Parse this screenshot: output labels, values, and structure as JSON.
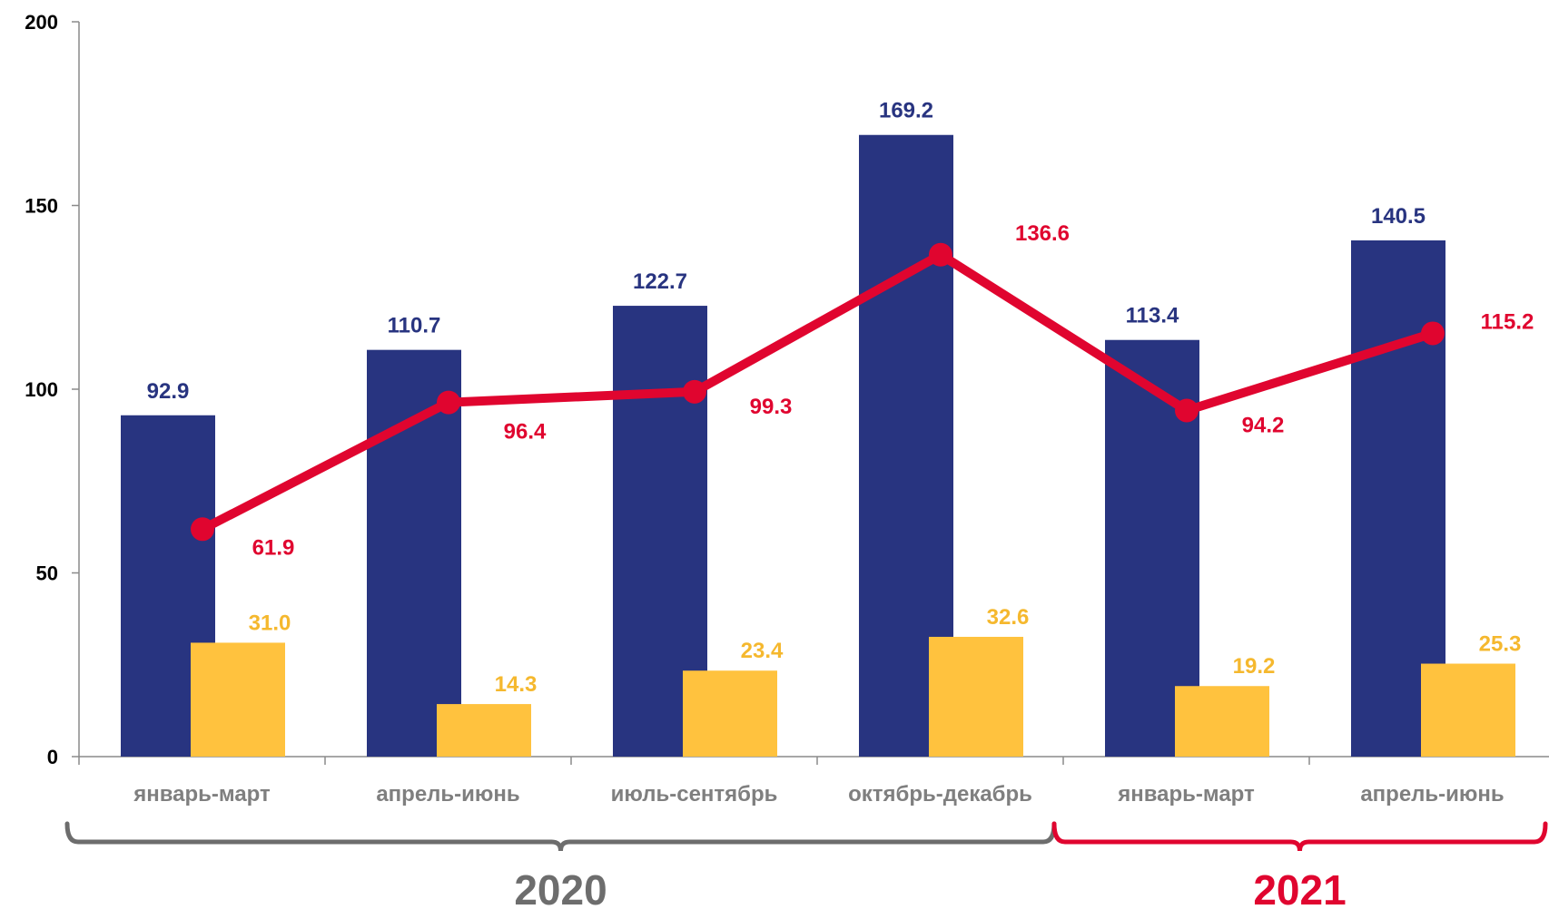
{
  "chart_data": {
    "type": "bar",
    "categories": [
      "январь-март",
      "апрель-июнь",
      "июль-сентябрь",
      "октябрь-декабрь",
      "январь-март",
      "апрель-июнь"
    ],
    "series": [
      {
        "kind": "bar",
        "color": "#283480",
        "values": [
          92.9,
          110.7,
          122.7,
          169.2,
          113.4,
          140.5
        ]
      },
      {
        "kind": "bar",
        "color": "#FFC23E",
        "values": [
          31.0,
          14.3,
          23.4,
          32.6,
          19.2,
          25.3
        ]
      },
      {
        "kind": "line",
        "color": "#E0052F",
        "values": [
          61.9,
          96.4,
          99.3,
          136.6,
          94.2,
          115.2
        ]
      }
    ],
    "ylim": [
      0,
      200
    ],
    "yticks": [
      "0",
      "50",
      "100",
      "150",
      "200"
    ],
    "groups": [
      {
        "label": "2020",
        "from": 0,
        "to": 3,
        "color": "#6D6D6D"
      },
      {
        "label": "2021",
        "from": 4,
        "to": 5,
        "color": "#E0052F"
      }
    ],
    "grid": false,
    "legend": "none"
  }
}
